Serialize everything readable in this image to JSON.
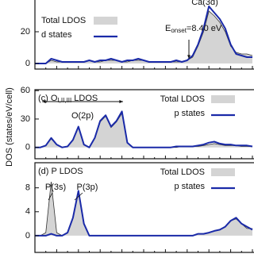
{
  "chart_data": [
    {
      "type": "line",
      "title": null,
      "legend": "upper-left",
      "annotations": [
        {
          "text": "Ca(3d)"
        },
        {
          "text": "E",
          "sub": "onset",
          "rest": "=8.40 eV"
        }
      ],
      "x": [
        0,
        2.5,
        5,
        7.5,
        10,
        12.5,
        15,
        17.5,
        20,
        22.5,
        25,
        27.5,
        30,
        32.5,
        35,
        37.5,
        40,
        42.5,
        45,
        47.5,
        50,
        52.5,
        55,
        57.5,
        60,
        62.5,
        65,
        67.5,
        70,
        72.5,
        75,
        77.5,
        80,
        82.5,
        85,
        87.5,
        90,
        92.5,
        95,
        97.5,
        100
      ],
      "xlim": [
        0,
        100
      ],
      "ylim": [
        -3.5,
        45
      ],
      "yticks": [
        0,
        20
      ],
      "series": [
        {
          "name": "Total LDOS",
          "style": "area",
          "color": "#d4d4d4",
          "values": [
            0,
            0,
            0,
            2,
            1,
            1,
            1,
            1,
            1,
            1,
            2,
            1,
            1,
            2,
            2,
            2,
            1,
            1,
            2,
            2,
            2,
            1,
            1,
            1,
            1,
            1,
            1,
            1,
            2,
            4,
            11,
            20,
            33,
            30,
            26,
            20,
            11,
            7,
            6,
            6,
            5
          ]
        },
        {
          "name": "d states",
          "style": "line",
          "color": "#1a2aa8",
          "values": [
            0,
            0,
            0,
            3,
            2,
            1,
            1,
            1,
            1,
            1,
            2,
            1,
            2,
            2,
            3,
            2,
            1,
            2,
            2,
            3,
            2,
            1,
            1,
            1,
            1,
            1,
            2,
            1,
            2,
            5,
            12,
            22,
            36,
            32,
            28,
            22,
            12,
            6,
            5,
            4,
            4
          ]
        }
      ]
    },
    {
      "type": "line",
      "title": "(c) O",
      "title_sub": "I,II,III",
      "title_rest": " LDOS",
      "ylabel": "DOS (states/eV/cell)",
      "legend": "upper-right",
      "annotations": [
        {
          "text": "O(2p)"
        }
      ],
      "x": [
        0,
        2.5,
        5,
        7.5,
        10,
        12.5,
        15,
        17.5,
        20,
        22.5,
        25,
        27.5,
        30,
        32.5,
        35,
        37.5,
        40,
        42.5,
        45,
        47.5,
        50,
        52.5,
        55,
        57.5,
        60,
        62.5,
        65,
        67.5,
        70,
        72.5,
        75,
        77.5,
        80,
        82.5,
        85,
        87.5,
        90,
        92.5,
        95,
        97.5,
        100
      ],
      "xlim": [
        0,
        100
      ],
      "ylim": [
        -12,
        61
      ],
      "yticks": [
        0,
        30,
        60
      ],
      "series": [
        {
          "name": "Total LDOS",
          "style": "area",
          "color": "#d4d4d4",
          "values": [
            0,
            0,
            2,
            9,
            3,
            0,
            1,
            8,
            21,
            3,
            0,
            10,
            27,
            33,
            21,
            27,
            36,
            5,
            0,
            0,
            0,
            0,
            0,
            0,
            0,
            0,
            0,
            1,
            1,
            1,
            1,
            2,
            3,
            4,
            3,
            2,
            2,
            2,
            1,
            1,
            1
          ]
        },
        {
          "name": "p states",
          "style": "line",
          "color": "#1a2aa8",
          "values": [
            0,
            0,
            2,
            10,
            3,
            0,
            1,
            8,
            22,
            3,
            0,
            10,
            28,
            34,
            22,
            28,
            38,
            5,
            0,
            0,
            0,
            0,
            0,
            0,
            0,
            0,
            1,
            1,
            1,
            1,
            2,
            3,
            5,
            6,
            4,
            3,
            3,
            2,
            2,
            2,
            1
          ]
        }
      ]
    },
    {
      "type": "line",
      "title": "(d) P LDOS",
      "legend": "upper-right",
      "annotations": [
        {
          "text": "P(3s)"
        },
        {
          "text": "P(3p)"
        }
      ],
      "x": [
        0,
        2.5,
        5,
        7.5,
        10,
        12.5,
        15,
        17.5,
        20,
        22.5,
        25,
        27.5,
        30,
        32.5,
        35,
        37.5,
        40,
        42.5,
        45,
        47.5,
        50,
        52.5,
        55,
        57.5,
        60,
        62.5,
        65,
        67.5,
        70,
        72.5,
        75,
        77.5,
        80,
        82.5,
        85,
        87.5,
        90,
        92.5,
        95,
        97.5,
        100
      ],
      "xlim": [
        0,
        100
      ],
      "ylim": [
        -2.8,
        12.2
      ],
      "yticks": [
        0,
        4,
        8
      ],
      "series": [
        {
          "name": "Total LDOS",
          "style": "area",
          "color": "#d4d4d4",
          "values": [
            0,
            0,
            0.5,
            9,
            0.5,
            0,
            0.5,
            3,
            7.2,
            2,
            0,
            0,
            0,
            0,
            0,
            0,
            0,
            0,
            0,
            0,
            0,
            0,
            0,
            0,
            0,
            0,
            0,
            0,
            0,
            0,
            0.3,
            0.3,
            0.5,
            0.8,
            1,
            1.5,
            2.5,
            2.8,
            2,
            1.2,
            1.2
          ]
        },
        {
          "name": "p states",
          "style": "line",
          "color": "#1a2aa8",
          "values": [
            0,
            0,
            0,
            0.3,
            0,
            0,
            0.5,
            3,
            7.5,
            2,
            0,
            0,
            0,
            0,
            0,
            0,
            0,
            0,
            0,
            0,
            0,
            0,
            0,
            0,
            0,
            0,
            0,
            0,
            0,
            0,
            0.3,
            0.3,
            0.5,
            0.8,
            1,
            1.5,
            2.5,
            3,
            2,
            1.5,
            1
          ]
        }
      ]
    }
  ]
}
